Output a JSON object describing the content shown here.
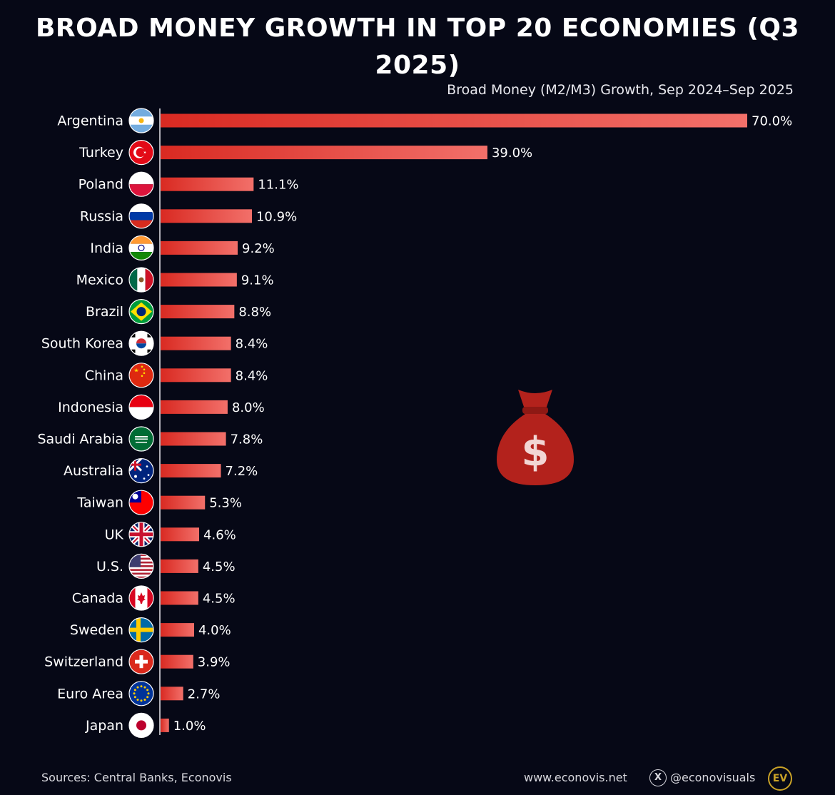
{
  "header": {
    "title": "BROAD MONEY GROWTH IN TOP 20 ECONOMIES (Q3 2025)",
    "subtitle": "Broad Money (M2/M3) Growth, Sep 2024–Sep 2025"
  },
  "chart_data": {
    "type": "bar",
    "orientation": "horizontal",
    "title": "BROAD MONEY GROWTH IN TOP 20 ECONOMIES (Q3 2025)",
    "subtitle": "Broad Money (M2/M3) Growth, Sep 2024–Sep 2025",
    "categories": [
      "Argentina",
      "Turkey",
      "Poland",
      "Russia",
      "India",
      "Mexico",
      "Brazil",
      "South Korea",
      "China",
      "Indonesia",
      "Saudi Arabia",
      "Australia",
      "Taiwan",
      "UK",
      "U.S.",
      "Canada",
      "Sweden",
      "Switzerland",
      "Euro Area",
      "Japan"
    ],
    "values": [
      70.0,
      39.0,
      11.1,
      10.9,
      9.2,
      9.1,
      8.8,
      8.4,
      8.4,
      8.0,
      7.8,
      7.2,
      5.3,
      4.6,
      4.5,
      4.5,
      4.0,
      3.9,
      2.7,
      1.0
    ],
    "value_labels": [
      "70.0%",
      "39.0%",
      "11.1%",
      "10.9%",
      "9.2%",
      "9.1%",
      "8.8%",
      "8.4%",
      "8.4%",
      "8.0%",
      "7.8%",
      "7.2%",
      "5.3%",
      "4.6%",
      "4.5%",
      "4.5%",
      "4.0%",
      "3.9%",
      "2.7%",
      "1.0%"
    ],
    "flag_icons": [
      "argentina-flag-icon",
      "turkey-flag-icon",
      "poland-flag-icon",
      "russia-flag-icon",
      "india-flag-icon",
      "mexico-flag-icon",
      "brazil-flag-icon",
      "south-korea-flag-icon",
      "china-flag-icon",
      "indonesia-flag-icon",
      "saudi-arabia-flag-icon",
      "australia-flag-icon",
      "taiwan-flag-icon",
      "uk-flag-icon",
      "us-flag-icon",
      "canada-flag-icon",
      "sweden-flag-icon",
      "switzerland-flag-icon",
      "euro-area-flag-icon",
      "japan-flag-icon"
    ],
    "xlim": [
      0,
      70
    ],
    "grid": false,
    "bar_color": "#e0342c",
    "bar_color_end": "#f06560"
  },
  "footer": {
    "sources": "Sources: Central Banks, Econovis",
    "website": "www.econovis.net",
    "handle": "@econovisuals",
    "x_icon": "X",
    "logo": "EV"
  },
  "colors": {
    "background": "#060816",
    "bag": "#b3221c",
    "accent_gold": "#c9a227"
  }
}
